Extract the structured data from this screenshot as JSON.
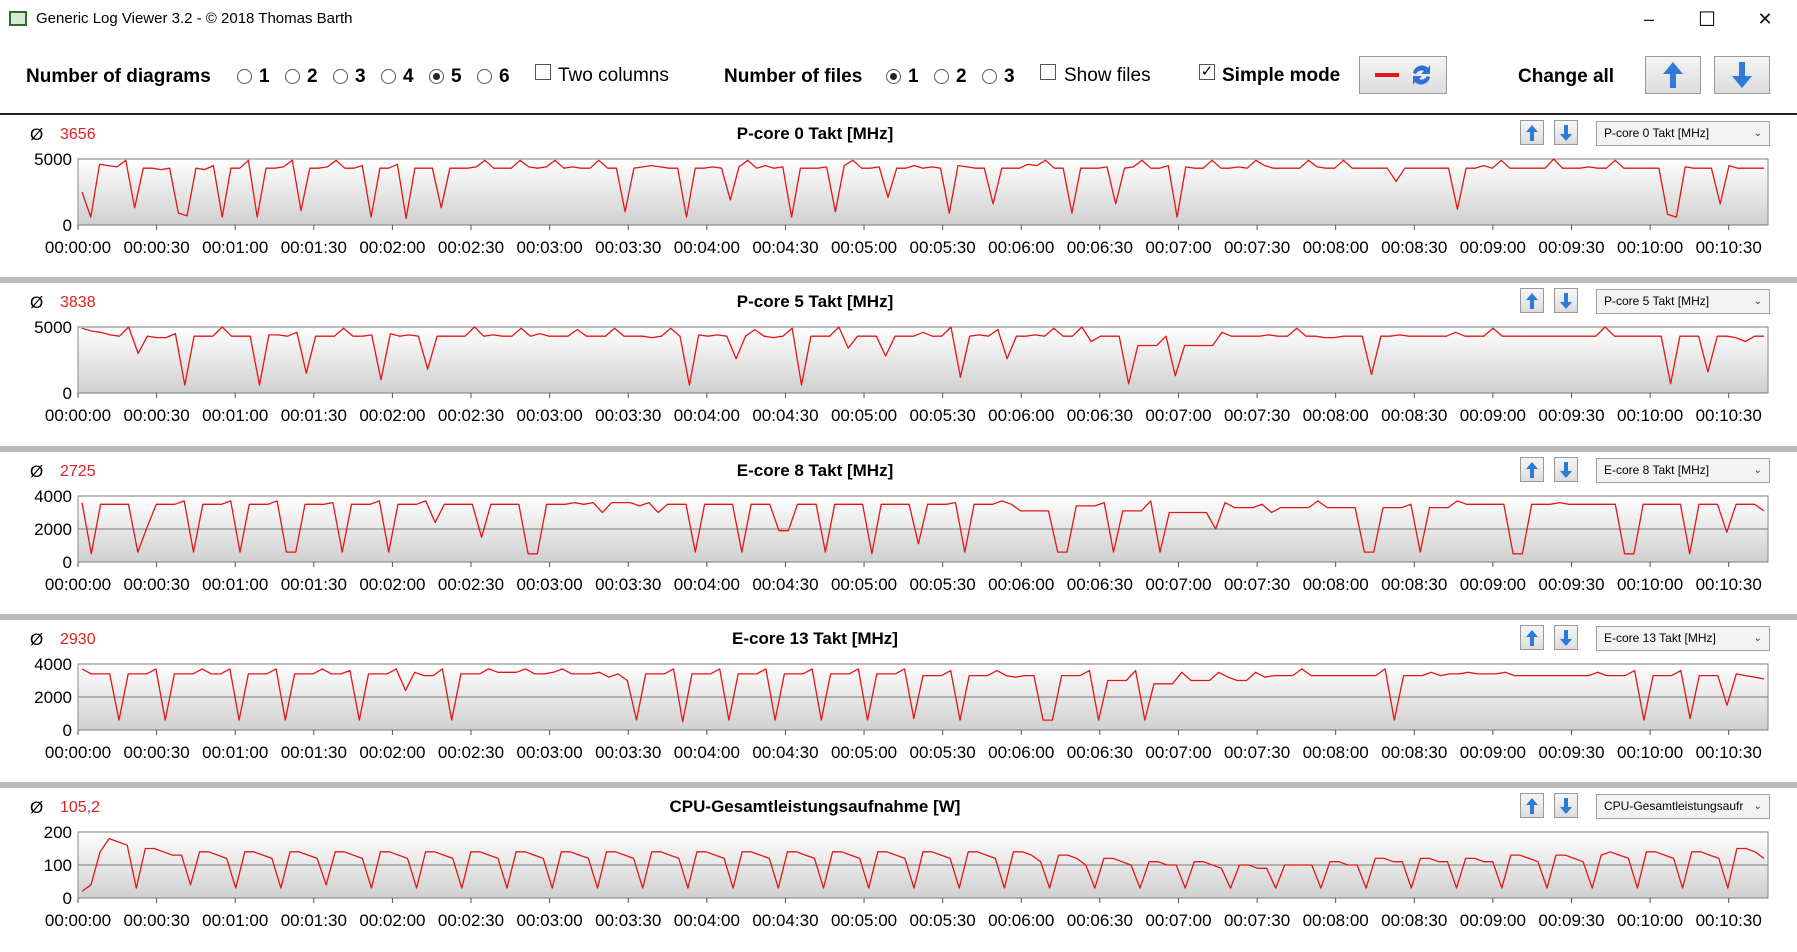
{
  "window": {
    "title": "Generic Log Viewer 3.2 - © 2018 Thomas Barth",
    "minimize_glyph": "–",
    "maximize_glyph": "☐",
    "close_glyph": "✕"
  },
  "toolbar": {
    "num_diagrams_label": "Number of diagrams",
    "diagram_options": [
      "1",
      "2",
      "3",
      "4",
      "5",
      "6"
    ],
    "diagram_selected": "5",
    "two_columns_label": "Two columns",
    "two_columns_checked": false,
    "num_files_label": "Number of files",
    "file_options": [
      "1",
      "2",
      "3"
    ],
    "file_selected": "1",
    "show_files_label": "Show files",
    "show_files_checked": false,
    "simple_mode_label": "Simple mode",
    "simple_mode_checked": true,
    "change_all_label": "Change all",
    "line_color": "#e51616"
  },
  "x_ticks": [
    "00:00:00",
    "00:00:30",
    "00:01:00",
    "00:01:30",
    "00:02:00",
    "00:02:30",
    "00:03:00",
    "00:03:30",
    "00:04:00",
    "00:04:30",
    "00:05:00",
    "00:05:30",
    "00:06:00",
    "00:06:30",
    "00:07:00",
    "00:07:30",
    "00:08:00",
    "00:08:30",
    "00:09:00",
    "00:09:30",
    "00:10:00",
    "00:10:30"
  ],
  "panels": [
    {
      "avg_symbol": "Ø",
      "avg": "3656",
      "title": "P-core 0 Takt [MHz]",
      "select": "P-core 0 Takt [MHz]"
    },
    {
      "avg_symbol": "Ø",
      "avg": "3838",
      "title": "P-core 5 Takt [MHz]",
      "select": "P-core 5 Takt [MHz]"
    },
    {
      "avg_symbol": "Ø",
      "avg": "2725",
      "title": "E-core 8 Takt [MHz]",
      "select": "E-core 8 Takt [MHz]"
    },
    {
      "avg_symbol": "Ø",
      "avg": "2930",
      "title": "E-core 13 Takt [MHz]",
      "select": "E-core 13 Takt [MHz]"
    },
    {
      "avg_symbol": "Ø",
      "avg": "105,2",
      "title": "CPU-Gesamtleistungsaufnahme [W]",
      "select": "CPU-Gesamtleistungsaufr"
    }
  ],
  "chart_data": [
    {
      "type": "line",
      "title": "P-core 0 Takt [MHz]",
      "x_unit": "s",
      "ylim": [
        0,
        5000
      ],
      "yticks": [
        0,
        5000
      ],
      "grid": true,
      "series": [
        {
          "values": [
            2500,
            600,
            4600,
            4500,
            4400,
            4900,
            1300,
            4300,
            4300,
            4200,
            4300,
            900,
            700,
            4300,
            4200,
            4500,
            600,
            4300,
            4300,
            4900,
            600,
            4300,
            4300,
            4400,
            4900,
            1100,
            4300,
            4300,
            4400,
            4900,
            4300,
            4300,
            4500,
            600,
            4300,
            4300,
            4600,
            500,
            4300,
            4300,
            4300,
            1300,
            4300,
            4300,
            4300,
            4400,
            4900,
            4300,
            4300,
            4300,
            4900,
            4400,
            4300,
            4400,
            4900,
            4300,
            4400,
            4300,
            4300,
            4900,
            4300,
            4300,
            1000,
            4300,
            4400,
            4500,
            4400,
            4300,
            4300,
            600,
            4300,
            4300,
            4400,
            4300,
            1900,
            4400,
            4900,
            4300,
            4500,
            4300,
            4400,
            600,
            4300,
            4300,
            4300,
            4400,
            1000,
            4500,
            4900,
            4300,
            4300,
            4400,
            2100,
            4300,
            4300,
            4500,
            4300,
            4400,
            4300,
            900,
            4500,
            4400,
            4300,
            4300,
            1600,
            4300,
            4300,
            4300,
            4600,
            4500,
            4900,
            4300,
            4300,
            900,
            4300,
            4300,
            4300,
            4400,
            1600,
            4300,
            4400,
            4900,
            4300,
            4300,
            4500,
            600,
            4400,
            4300,
            4300,
            4900,
            4300,
            4300,
            4400,
            4300,
            4900,
            4500,
            4300,
            4300,
            4300,
            4300,
            4900,
            4400,
            4300,
            4300,
            4900,
            4300,
            4300,
            4300,
            4300,
            4300,
            3300,
            4300,
            4300,
            4300,
            4300,
            4300,
            4300,
            1200,
            4300,
            4300,
            4500,
            4300,
            4900,
            4300,
            4300,
            4300,
            4300,
            4300,
            5000,
            4300,
            4300,
            4300,
            4400,
            4300,
            4300,
            4900,
            4300,
            4300,
            4300,
            4300,
            4300,
            800,
            600,
            4400,
            4300,
            4300,
            4300,
            1600,
            4500,
            4300,
            4300,
            4300,
            4300
          ]
        }
      ]
    },
    {
      "type": "line",
      "title": "P-core 5 Takt [MHz]",
      "x_unit": "s",
      "ylim": [
        0,
        5000
      ],
      "yticks": [
        0,
        5000
      ],
      "grid": true,
      "series": [
        {
          "values": [
            4900,
            4700,
            4600,
            4400,
            4300,
            5000,
            3000,
            4300,
            4200,
            4200,
            4500,
            600,
            4300,
            4300,
            4300,
            5000,
            4300,
            4300,
            4300,
            600,
            4400,
            4400,
            4300,
            4600,
            1500,
            4300,
            4300,
            4300,
            4900,
            4300,
            4300,
            4400,
            1000,
            4500,
            4300,
            4400,
            4300,
            1800,
            4300,
            4300,
            4300,
            4300,
            5000,
            4300,
            4400,
            4300,
            4300,
            4900,
            4300,
            4500,
            4300,
            4300,
            4300,
            4800,
            4300,
            4300,
            4300,
            4900,
            4300,
            4300,
            4300,
            4200,
            4300,
            4900,
            4300,
            600,
            4400,
            4300,
            4400,
            4300,
            2600,
            4300,
            4800,
            4300,
            4200,
            4300,
            4900,
            600,
            4300,
            4300,
            4300,
            5000,
            3400,
            4300,
            4300,
            4300,
            2800,
            4300,
            4300,
            4300,
            4600,
            4300,
            4300,
            5000,
            1200,
            4300,
            4400,
            4300,
            4800,
            2600,
            4300,
            4300,
            4400,
            4300,
            4900,
            4300,
            4300,
            5000,
            3900,
            4300,
            4300,
            4300,
            700,
            3600,
            3600,
            3600,
            4300,
            1300,
            3600,
            3600,
            3600,
            3600,
            4600,
            4300,
            4300,
            4300,
            4300,
            4400,
            4300,
            4300,
            4900,
            4300,
            4300,
            4200,
            4200,
            4300,
            4300,
            4300,
            1400,
            4300,
            4300,
            4400,
            4300,
            4300,
            4300,
            4300,
            4300,
            4600,
            4300,
            4300,
            4300,
            4900,
            4300,
            4300,
            4300,
            4300,
            4300,
            4300,
            4300,
            4300,
            4300,
            4300,
            4300,
            5000,
            4300,
            4300,
            4300,
            4300,
            4300,
            4300,
            700,
            4300,
            4300,
            4300,
            1600,
            4300,
            4300,
            4200,
            3900,
            4300,
            4300
          ]
        }
      ]
    },
    {
      "type": "line",
      "title": "E-core 8 Takt [MHz]",
      "x_unit": "s",
      "ylim": [
        0,
        4000
      ],
      "yticks": [
        0,
        2000,
        4000
      ],
      "grid": true,
      "series": [
        {
          "values": [
            3600,
            500,
            3500,
            3500,
            3500,
            3500,
            600,
            2100,
            3500,
            3500,
            3500,
            3700,
            600,
            3500,
            3500,
            3500,
            3700,
            600,
            3500,
            3500,
            3500,
            3700,
            600,
            600,
            3500,
            3500,
            3500,
            3600,
            600,
            3500,
            3500,
            3500,
            3700,
            600,
            3500,
            3500,
            3500,
            3700,
            2400,
            3500,
            3500,
            3500,
            3500,
            1500,
            3500,
            3500,
            3500,
            3500,
            500,
            500,
            3500,
            3500,
            3500,
            3600,
            3500,
            3600,
            3000,
            3600,
            3600,
            3600,
            3400,
            3600,
            3000,
            3500,
            3500,
            3500,
            600,
            3500,
            3500,
            3500,
            3500,
            600,
            3500,
            3500,
            3500,
            1900,
            1900,
            3500,
            3500,
            3500,
            600,
            3500,
            3500,
            3500,
            3500,
            500,
            3500,
            3500,
            3500,
            3500,
            1100,
            3500,
            3500,
            3500,
            3600,
            600,
            3500,
            3500,
            3500,
            3700,
            3500,
            3100,
            3100,
            3100,
            3100,
            600,
            600,
            3400,
            3400,
            3400,
            3600,
            600,
            3100,
            3100,
            3100,
            3700,
            600,
            3000,
            3000,
            3000,
            3000,
            3000,
            2000,
            3600,
            3300,
            3300,
            3300,
            3500,
            3000,
            3300,
            3300,
            3300,
            3300,
            3700,
            3300,
            3300,
            3300,
            3300,
            600,
            600,
            3300,
            3300,
            3300,
            3500,
            600,
            3300,
            3300,
            3300,
            3700,
            3500,
            3500,
            3500,
            3500,
            3500,
            500,
            500,
            3500,
            3500,
            3500,
            3600,
            3500,
            3500,
            3500,
            3500,
            3500,
            3500,
            500,
            500,
            3500,
            3500,
            3500,
            3500,
            3500,
            500,
            3500,
            3500,
            3500,
            1800,
            3500,
            3500,
            3500,
            3100
          ]
        }
      ]
    },
    {
      "type": "line",
      "title": "E-core 13 Takt [MHz]",
      "x_unit": "s",
      "ylim": [
        0,
        4000
      ],
      "yticks": [
        0,
        2000,
        4000
      ],
      "grid": true,
      "series": [
        {
          "values": [
            3700,
            3400,
            3400,
            3400,
            600,
            3400,
            3400,
            3400,
            3700,
            600,
            3400,
            3400,
            3400,
            3700,
            3400,
            3400,
            3700,
            600,
            3400,
            3400,
            3400,
            3700,
            600,
            3400,
            3400,
            3400,
            3700,
            3400,
            3400,
            3600,
            600,
            3400,
            3400,
            3400,
            3700,
            2400,
            3500,
            3300,
            3300,
            3700,
            600,
            3400,
            3400,
            3400,
            3700,
            3500,
            3500,
            3500,
            3700,
            3400,
            3400,
            3500,
            3700,
            3400,
            3400,
            3400,
            3500,
            3200,
            3400,
            3000,
            600,
            3400,
            3400,
            3400,
            3700,
            500,
            3400,
            3400,
            3400,
            3700,
            600,
            3400,
            3400,
            3400,
            3700,
            600,
            3400,
            3400,
            3400,
            3700,
            600,
            3400,
            3400,
            3400,
            3700,
            600,
            3400,
            3400,
            3400,
            3700,
            700,
            3300,
            3300,
            3300,
            3600,
            600,
            3300,
            3300,
            3300,
            3600,
            3300,
            3200,
            3300,
            3300,
            600,
            600,
            3300,
            3300,
            3300,
            3600,
            600,
            3000,
            3000,
            3000,
            3600,
            600,
            2800,
            2800,
            2800,
            3500,
            3000,
            3000,
            3000,
            3500,
            3200,
            3000,
            3000,
            3500,
            3200,
            3300,
            3300,
            3300,
            3700,
            3300,
            3300,
            3300,
            3300,
            3300,
            3300,
            3300,
            3300,
            3700,
            600,
            3300,
            3300,
            3300,
            3500,
            3300,
            3400,
            3400,
            3500,
            3400,
            3400,
            3400,
            3500,
            3300,
            3300,
            3300,
            3300,
            3300,
            3300,
            3300,
            3300,
            3300,
            3500,
            3300,
            3300,
            3300,
            3600,
            600,
            3300,
            3300,
            3300,
            3600,
            700,
            3300,
            3300,
            3300,
            1500,
            3400,
            3300,
            3200,
            3100
          ]
        }
      ]
    },
    {
      "type": "line",
      "title": "CPU-Gesamtleistungsaufnahme [W]",
      "x_unit": "s",
      "ylim": [
        0,
        200
      ],
      "yticks": [
        0,
        100,
        200
      ],
      "grid": true,
      "series": [
        {
          "values": [
            20,
            40,
            140,
            180,
            170,
            160,
            30,
            150,
            150,
            140,
            130,
            130,
            40,
            140,
            140,
            130,
            120,
            30,
            140,
            140,
            130,
            120,
            30,
            140,
            140,
            130,
            120,
            40,
            140,
            140,
            130,
            120,
            30,
            140,
            140,
            130,
            120,
            30,
            140,
            140,
            130,
            120,
            30,
            140,
            140,
            130,
            120,
            30,
            140,
            140,
            130,
            120,
            30,
            140,
            140,
            130,
            120,
            30,
            140,
            140,
            130,
            120,
            30,
            140,
            140,
            130,
            120,
            30,
            140,
            140,
            130,
            120,
            30,
            140,
            140,
            130,
            120,
            30,
            140,
            140,
            130,
            120,
            30,
            140,
            140,
            130,
            120,
            30,
            140,
            140,
            130,
            120,
            30,
            140,
            140,
            130,
            120,
            30,
            140,
            140,
            130,
            120,
            30,
            140,
            140,
            130,
            110,
            30,
            130,
            130,
            120,
            100,
            30,
            120,
            120,
            110,
            100,
            30,
            110,
            110,
            100,
            100,
            30,
            110,
            110,
            100,
            90,
            30,
            100,
            100,
            90,
            90,
            30,
            100,
            100,
            100,
            100,
            30,
            110,
            110,
            100,
            100,
            30,
            120,
            120,
            110,
            110,
            30,
            120,
            120,
            110,
            110,
            30,
            120,
            120,
            110,
            110,
            30,
            130,
            130,
            120,
            110,
            30,
            130,
            130,
            120,
            110,
            30,
            130,
            140,
            130,
            120,
            30,
            140,
            140,
            130,
            120,
            30,
            140,
            140,
            130,
            120,
            30,
            150,
            150,
            140,
            120
          ]
        }
      ]
    }
  ]
}
